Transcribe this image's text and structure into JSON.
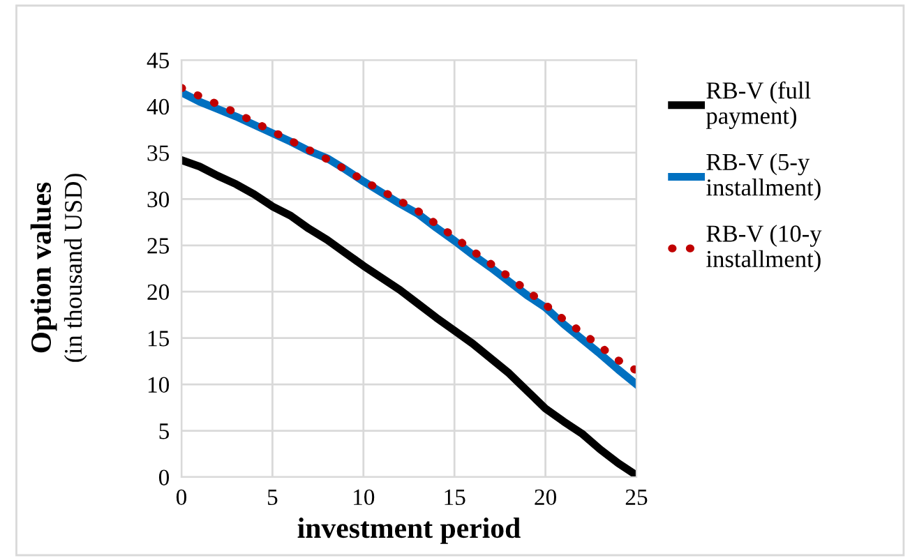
{
  "chart_data": {
    "type": "line",
    "xlabel": "investment period",
    "ylabel": "Option values\n(in thousand USD)",
    "x": [
      0,
      1,
      2,
      3,
      4,
      5,
      6,
      7,
      8,
      9,
      10,
      11,
      12,
      13,
      14,
      15,
      16,
      17,
      18,
      19,
      20,
      21,
      22,
      23,
      24,
      25
    ],
    "series": [
      {
        "name": "RB-V (full\npayment)",
        "color": "#000000",
        "line_style": "solid",
        "values": [
          34.2,
          33.5,
          32.5,
          31.6,
          30.5,
          29.2,
          28.2,
          26.8,
          25.6,
          24.2,
          22.8,
          21.5,
          20.2,
          18.7,
          17.2,
          15.8,
          14.4,
          12.8,
          11.2,
          9.3,
          7.4,
          6.0,
          4.7,
          3.0,
          1.5,
          0.2
        ]
      },
      {
        "name": "RB-V (5-y\ninstallment)",
        "color": "#0070c0",
        "line_style": "solid",
        "values": [
          41.5,
          40.5,
          39.7,
          38.9,
          38.0,
          37.1,
          36.2,
          35.2,
          34.4,
          33.2,
          31.9,
          30.7,
          29.5,
          28.4,
          26.9,
          25.5,
          24.0,
          22.6,
          21.1,
          19.6,
          18.3,
          16.5,
          14.9,
          13.3,
          11.6,
          10.0
        ]
      },
      {
        "name": "RB-V (10-y\ninstallment)",
        "color": "#c00000",
        "line_style": "dotted",
        "values": [
          42.0,
          41.1,
          40.2,
          39.3,
          38.3,
          37.3,
          36.3,
          35.3,
          34.3,
          33.2,
          32.0,
          30.9,
          29.8,
          28.7,
          27.3,
          25.9,
          24.4,
          23.0,
          21.6,
          20.1,
          18.6,
          17.0,
          15.6,
          14.1,
          12.6,
          11.5
        ]
      }
    ],
    "xlim": [
      0,
      25
    ],
    "xticks": [
      0,
      5,
      10,
      15,
      20,
      25
    ],
    "ylim": [
      0,
      45
    ],
    "yticks": [
      0,
      5,
      10,
      15,
      20,
      25,
      30,
      35,
      40,
      45
    ],
    "grid": true,
    "legend": "right",
    "marker": "none"
  }
}
